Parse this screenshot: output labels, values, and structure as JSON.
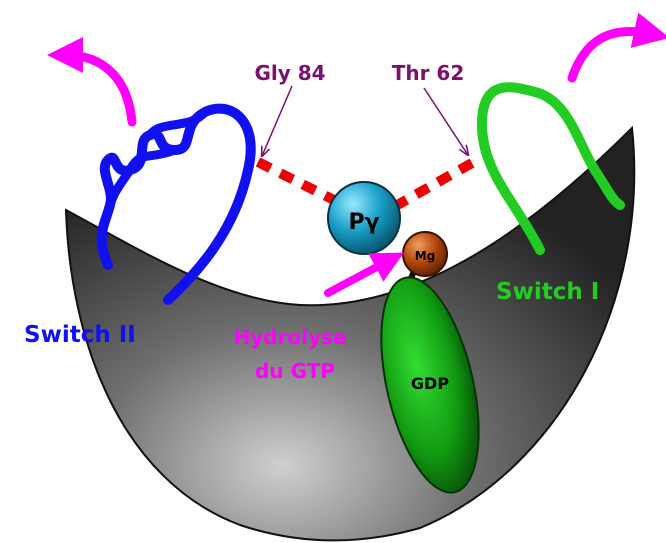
{
  "labels": {
    "gly": "Gly 84",
    "thr": "Thr 62",
    "pgamma": "Pγ",
    "mg": "Mg",
    "gdp": "GDP",
    "switch2": "Switch II",
    "switch1": "Switch I",
    "hydrolyse_line1": "Hydrolyse",
    "hydrolyse_line2": "du GTP"
  },
  "colors": {
    "label_purple": "#7a1070",
    "switch2_blue": "#1010f0",
    "switch1_green": "#22cc22",
    "motion_arrow_magenta": "#ff00ff",
    "bond_red": "#ee0000",
    "pgamma_cyan": "#1aa0c8",
    "mg_orange": "#b84a10",
    "gdp_green": "#118a11",
    "pocket_gray": "#444444"
  }
}
